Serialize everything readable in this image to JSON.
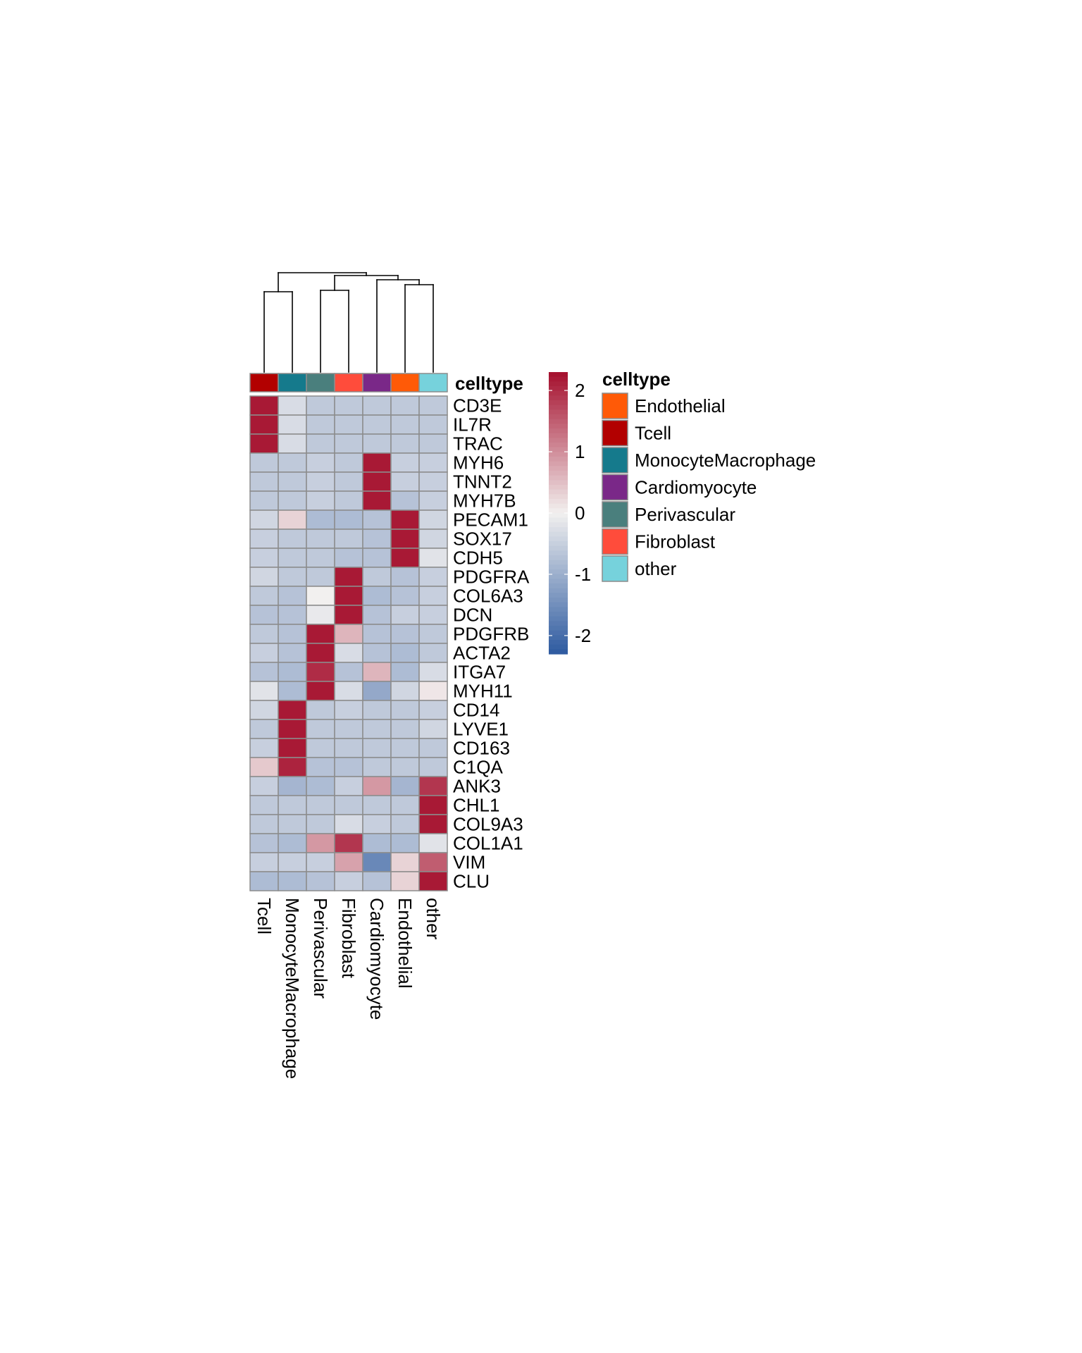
{
  "chart_data": {
    "type": "heatmap",
    "title": "",
    "columns": [
      "Tcell",
      "MonocyteMacrophage",
      "Perivascular",
      "Fibroblast",
      "Cardiomyocyte",
      "Endothelial",
      "other"
    ],
    "rows": [
      "CD3E",
      "IL7R",
      "TRAC",
      "MYH6",
      "TNNT2",
      "MYH7B",
      "PECAM1",
      "SOX17",
      "CDH5",
      "PDGFRA",
      "COL6A3",
      "DCN",
      "PDGFRB",
      "ACTA2",
      "ITGA7",
      "MYH11",
      "CD14",
      "LYVE1",
      "CD163",
      "C1QA",
      "ANK3",
      "CHL1",
      "COL9A3",
      "COL1A1",
      "VIM",
      "CLU"
    ],
    "values": [
      [
        2.2,
        -0.3,
        -0.6,
        -0.6,
        -0.6,
        -0.6,
        -0.6
      ],
      [
        2.2,
        -0.3,
        -0.6,
        -0.6,
        -0.6,
        -0.6,
        -0.6
      ],
      [
        2.2,
        -0.3,
        -0.6,
        -0.6,
        -0.6,
        -0.6,
        -0.6
      ],
      [
        -0.6,
        -0.6,
        -0.5,
        -0.6,
        2.2,
        -0.5,
        -0.5
      ],
      [
        -0.6,
        -0.6,
        -0.5,
        -0.6,
        2.2,
        -0.5,
        -0.5
      ],
      [
        -0.6,
        -0.6,
        -0.5,
        -0.6,
        2.2,
        -0.7,
        -0.5
      ],
      [
        -0.4,
        0.3,
        -0.8,
        -0.8,
        -0.7,
        2.2,
        -0.4
      ],
      [
        -0.5,
        -0.6,
        -0.6,
        -0.6,
        -0.7,
        2.2,
        -0.4
      ],
      [
        -0.5,
        -0.6,
        -0.6,
        -0.7,
        -0.7,
        2.2,
        -0.2
      ],
      [
        -0.4,
        -0.6,
        -0.6,
        2.2,
        -0.6,
        -0.7,
        -0.5
      ],
      [
        -0.6,
        -0.7,
        0.0,
        2.2,
        -0.8,
        -0.7,
        -0.5
      ],
      [
        -0.7,
        -0.7,
        -0.1,
        2.2,
        -0.7,
        -0.5,
        -0.5
      ],
      [
        -0.6,
        -0.7,
        2.2,
        0.6,
        -0.7,
        -0.7,
        -0.6
      ],
      [
        -0.5,
        -0.7,
        2.2,
        -0.3,
        -0.7,
        -0.8,
        -0.6
      ],
      [
        -0.7,
        -0.8,
        2.0,
        -0.7,
        0.6,
        -0.8,
        -0.3
      ],
      [
        -0.2,
        -0.8,
        2.2,
        -0.3,
        -1.1,
        -0.4,
        0.1
      ],
      [
        -0.4,
        2.2,
        -0.6,
        -0.5,
        -0.6,
        -0.6,
        -0.5
      ],
      [
        -0.6,
        2.2,
        -0.6,
        -0.6,
        -0.6,
        -0.6,
        -0.4
      ],
      [
        -0.5,
        2.2,
        -0.6,
        -0.6,
        -0.6,
        -0.6,
        -0.6
      ],
      [
        0.4,
        2.1,
        -0.7,
        -0.7,
        -0.6,
        -0.6,
        -0.6
      ],
      [
        -0.5,
        -0.9,
        -0.8,
        -0.5,
        0.9,
        -0.9,
        1.9
      ],
      [
        -0.6,
        -0.6,
        -0.6,
        -0.6,
        -0.6,
        -0.6,
        2.2
      ],
      [
        -0.6,
        -0.6,
        -0.6,
        -0.3,
        -0.5,
        -0.6,
        2.2
      ],
      [
        -0.7,
        -0.8,
        0.9,
        1.9,
        -0.8,
        -0.8,
        -0.2
      ],
      [
        -0.5,
        -0.5,
        -0.5,
        0.8,
        -1.6,
        0.3,
        1.5
      ],
      [
        -0.8,
        -0.8,
        -0.7,
        -0.5,
        -0.7,
        0.3,
        2.2
      ]
    ],
    "color_scale": {
      "range": [
        -2.3,
        2.3
      ],
      "ticks": [
        2,
        1,
        0,
        -1,
        -2
      ],
      "low_color": "#2D5AA0",
      "mid_color": "#F2F0EF",
      "high_color": "#A50F2D"
    },
    "annotation": {
      "name": "celltype",
      "column_colors": [
        "#B20000",
        "#157A8C",
        "#4A7F7D",
        "#FF4C3B",
        "#7A2888",
        "#FF5A07",
        "#76D2DC"
      ],
      "legend": [
        {
          "label": "Endothelial",
          "color": "#FF5A07"
        },
        {
          "label": "Tcell",
          "color": "#B20000"
        },
        {
          "label": "MonocyteMacrophage",
          "color": "#157A8C"
        },
        {
          "label": "Cardiomyocyte",
          "color": "#7A2888"
        },
        {
          "label": "Perivascular",
          "color": "#4A7F7D"
        },
        {
          "label": "Fibroblast",
          "color": "#FF4C3B"
        },
        {
          "label": "other",
          "color": "#76D2DC"
        }
      ]
    },
    "column_dendrogram": true
  }
}
